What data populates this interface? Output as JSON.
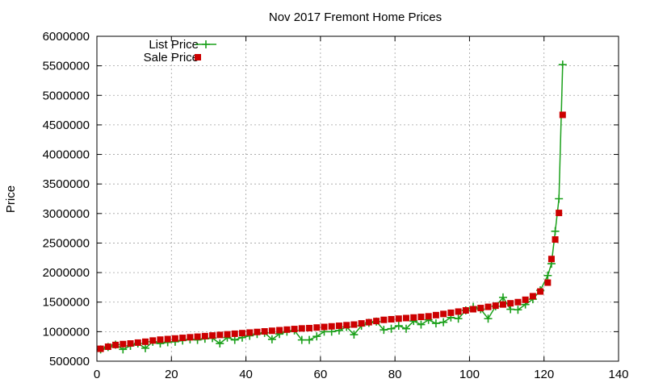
{
  "chart_data": {
    "type": "line",
    "title": "Nov 2017 Fremont Home Prices",
    "xlabel": "",
    "ylabel": "Price",
    "xlim": [
      0,
      140
    ],
    "ylim": [
      500000,
      6000000
    ],
    "x_ticks": [
      "0",
      "20",
      "40",
      "60",
      "80",
      "100",
      "120",
      "140"
    ],
    "y_ticks": [
      "500000",
      "1000000",
      "1500000",
      "2000000",
      "2500000",
      "3000000",
      "3500000",
      "4000000",
      "4500000",
      "5000000",
      "5500000",
      "6000000"
    ],
    "grid": true,
    "legend_position": "top-left",
    "series": [
      {
        "name": "List Price",
        "style": "line-with-plus-markers",
        "color": "#1aa01a",
        "x": [
          1,
          3,
          5,
          7,
          9,
          11,
          13,
          15,
          17,
          19,
          21,
          23,
          25,
          27,
          29,
          31,
          33,
          35,
          37,
          39,
          41,
          43,
          45,
          47,
          49,
          51,
          53,
          55,
          57,
          59,
          61,
          63,
          65,
          67,
          69,
          71,
          73,
          75,
          77,
          79,
          81,
          83,
          85,
          87,
          89,
          91,
          93,
          95,
          97,
          99,
          101,
          103,
          105,
          107,
          109,
          111,
          113,
          115,
          117,
          119,
          121,
          122,
          123,
          124,
          125
        ],
        "y": [
          700000,
          740000,
          780000,
          700000,
          760000,
          800000,
          720000,
          830000,
          800000,
          820000,
          830000,
          850000,
          870000,
          860000,
          880000,
          890000,
          800000,
          900000,
          860000,
          900000,
          930000,
          960000,
          980000,
          870000,
          960000,
          1000000,
          1020000,
          860000,
          860000,
          920000,
          1000000,
          1000000,
          1020000,
          1080000,
          950000,
          1100000,
          1150000,
          1170000,
          1030000,
          1050000,
          1100000,
          1050000,
          1180000,
          1120000,
          1200000,
          1140000,
          1160000,
          1240000,
          1220000,
          1360000,
          1420000,
          1380000,
          1220000,
          1430000,
          1580000,
          1380000,
          1370000,
          1460000,
          1550000,
          1700000,
          1950000,
          2150000,
          2700000,
          3250000,
          5520000
        ]
      },
      {
        "name": "Sale Price",
        "style": "square-markers",
        "color": "#cc0000",
        "x": [
          1,
          3,
          5,
          7,
          9,
          11,
          13,
          15,
          17,
          19,
          21,
          23,
          25,
          27,
          29,
          31,
          33,
          35,
          37,
          39,
          41,
          43,
          45,
          47,
          49,
          51,
          53,
          55,
          57,
          59,
          61,
          63,
          65,
          67,
          69,
          71,
          73,
          75,
          77,
          79,
          81,
          83,
          85,
          87,
          89,
          91,
          93,
          95,
          97,
          99,
          101,
          103,
          105,
          107,
          109,
          111,
          113,
          115,
          117,
          119,
          121,
          122,
          123,
          124,
          125
        ],
        "y": [
          710000,
          745000,
          775000,
          790000,
          800000,
          815000,
          830000,
          850000,
          865000,
          875000,
          885000,
          895000,
          905000,
          915000,
          925000,
          935000,
          945000,
          955000,
          965000,
          975000,
          985000,
          995000,
          1005000,
          1015000,
          1025000,
          1035000,
          1045000,
          1055000,
          1060000,
          1070000,
          1080000,
          1090000,
          1100000,
          1110000,
          1120000,
          1140000,
          1160000,
          1180000,
          1200000,
          1210000,
          1220000,
          1230000,
          1240000,
          1250000,
          1260000,
          1280000,
          1300000,
          1320000,
          1340000,
          1360000,
          1380000,
          1400000,
          1420000,
          1440000,
          1460000,
          1480000,
          1500000,
          1540000,
          1600000,
          1680000,
          1830000,
          2230000,
          2560000,
          3010000,
          4670000
        ]
      }
    ]
  }
}
